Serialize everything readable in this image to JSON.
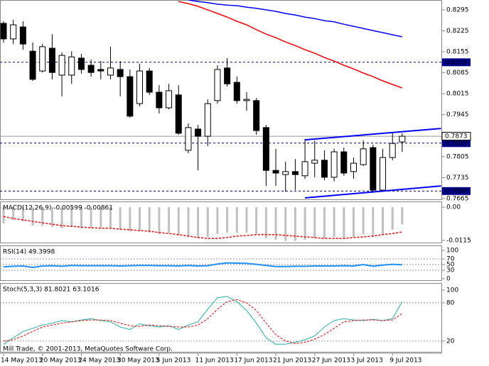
{
  "footer": "Mill Trade, © 2001-2013, MetaQuotes Software Corp.",
  "chart_data": [
    {
      "type": "candlestick",
      "categories": [
        "14 May 2013",
        null,
        null,
        null,
        "20 May 2013",
        null,
        null,
        null,
        "24 May 2013",
        null,
        null,
        null,
        "30 May 2013",
        null,
        null,
        null,
        "5 Jun 2013",
        null,
        null,
        null,
        "11 Jun 2013",
        null,
        null,
        null,
        "17 Jun 2013",
        null,
        null,
        null,
        "21 Jun 2013",
        null,
        null,
        null,
        "27 Jun 2013",
        null,
        null,
        null,
        "3 Jul 2013",
        null,
        null,
        null,
        "9 Jul 2013",
        null
      ],
      "open": [
        0.825,
        0.8198,
        0.8238,
        0.8157,
        0.8091,
        0.8167,
        0.8077,
        0.8077,
        0.8134,
        0.811,
        0.8096,
        0.8077,
        0.8096,
        0.8072,
        0.7982,
        0.8091,
        0.802,
        0.7968,
        0.8011,
        0.7826,
        0.7897,
        0.7873,
        0.7992,
        0.8101,
        0.8053,
        0.7992,
        0.7992,
        0.7902,
        0.7759,
        0.7745,
        0.7755,
        0.7741,
        0.7783,
        0.7793,
        0.7736,
        0.7821,
        0.7755,
        0.7778,
        0.7835,
        0.7693,
        0.7802,
        0.7854
      ],
      "high": [
        0.8257,
        0.8262,
        0.8257,
        0.8186,
        0.8181,
        0.8214,
        0.8153,
        0.8157,
        0.8148,
        0.8129,
        0.8124,
        0.8172,
        0.8124,
        0.8096,
        0.8115,
        0.8101,
        0.8044,
        0.8048,
        0.8044,
        0.7916,
        0.7911,
        0.7996,
        0.811,
        0.8134,
        0.8072,
        0.802,
        0.8001,
        0.7911,
        0.7831,
        0.7788,
        0.7797,
        0.7864,
        0.7859,
        0.7826,
        0.7831,
        0.7835,
        0.7802,
        0.7859,
        0.7845,
        0.7831,
        0.7887,
        0.7883
      ],
      "low": [
        0.8186,
        0.8181,
        0.8162,
        0.8058,
        0.8086,
        0.8063,
        0.8006,
        0.8048,
        0.8082,
        0.8072,
        0.8063,
        0.8063,
        0.8006,
        0.7935,
        0.7973,
        0.8011,
        0.7949,
        0.7963,
        0.7878,
        0.7816,
        0.7759,
        0.784,
        0.7982,
        0.8039,
        0.7982,
        0.7958,
        0.7878,
        0.7707,
        0.7707,
        0.7688,
        0.7693,
        0.7731,
        0.7736,
        0.7726,
        0.7722,
        0.7741,
        0.7731,
        0.7774,
        0.7684,
        0.7688,
        0.7793,
        0.7821
      ],
      "close": [
        0.8198,
        0.8245,
        0.8181,
        0.8063,
        0.8172,
        0.8086,
        0.8143,
        0.8138,
        0.8096,
        0.8086,
        0.8091,
        0.8101,
        0.8072,
        0.794,
        0.8091,
        0.802,
        0.7968,
        0.8025,
        0.7883,
        0.7902,
        0.7873,
        0.7982,
        0.8096,
        0.8048,
        0.7992,
        0.7996,
        0.7892,
        0.7759,
        0.775,
        0.7755,
        0.7745,
        0.7788,
        0.7793,
        0.7736,
        0.7821,
        0.775,
        0.7783,
        0.7831,
        0.7693,
        0.7802,
        0.7849,
        0.7873
      ],
      "up_color": "#ffffff",
      "down_color": "#000000",
      "series": [
        {
          "color": "#ff0000",
          "values": [
            null,
            null,
            null,
            null,
            null,
            null,
            null,
            null,
            null,
            null,
            null,
            null,
            null,
            null,
            null,
            null,
            null,
            null,
            0.8323,
            0.8316,
            0.8307,
            0.8295,
            0.8283,
            0.8271,
            0.8257,
            0.8245,
            0.8229,
            0.8214,
            0.8202,
            0.8188,
            0.8176,
            0.8162,
            0.815,
            0.8136,
            0.8124,
            0.811,
            0.8098,
            0.8084,
            0.8072,
            0.8058,
            0.8046,
            0.8034
          ]
        },
        {
          "color": "#0000ff",
          "values": [
            null,
            null,
            null,
            null,
            null,
            null,
            null,
            null,
            null,
            null,
            null,
            null,
            null,
            null,
            null,
            null,
            null,
            null,
            null,
            0.8328,
            0.8323,
            0.8319,
            0.8314,
            0.8311,
            0.8309,
            0.8304,
            0.83,
            0.8295,
            0.829,
            0.8283,
            0.8278,
            0.8271,
            0.8266,
            0.8259,
            0.8255,
            0.8247,
            0.824,
            0.8233,
            0.8226,
            0.8219,
            0.8212,
            0.8205
          ]
        }
      ],
      "trendlines": [
        {
          "color": "#0000ff",
          "x": [
            31,
            45
          ],
          "values": [
            0.7861,
            0.7899
          ]
        },
        {
          "color": "#0000ff",
          "x": [
            31,
            45
          ],
          "values": [
            0.7667,
            0.7707
          ]
        }
      ],
      "levels": [
        {
          "value": 0.812,
          "label": "0.8120"
        },
        {
          "value": 0.785,
          "label": "0.7850"
        },
        {
          "value": 0.769,
          "label": "0.7690"
        }
      ],
      "level_color": "#00008b",
      "last_price": 0.7873,
      "ylim": [
        0.766,
        0.8328
      ],
      "yticks": [
        0.8295,
        0.8225,
        0.8155,
        0.8085,
        0.8015,
        0.7945,
        0.7805,
        0.7735,
        0.7665
      ]
    },
    {
      "type": "macd",
      "title": "MACD(12,26,9) -0.00599 -0.00861",
      "color": "#c0c0c0",
      "values": [
        -0.0056,
        -0.0044,
        -0.0049,
        -0.0064,
        -0.0064,
        -0.0069,
        -0.0073,
        -0.0069,
        -0.0073,
        -0.0073,
        -0.0073,
        -0.0073,
        -0.0078,
        -0.0083,
        -0.0083,
        -0.0088,
        -0.0093,
        -0.0088,
        -0.0098,
        -0.0103,
        -0.0108,
        -0.0103,
        -0.0093,
        -0.0088,
        -0.0088,
        -0.0088,
        -0.0093,
        -0.0108,
        -0.0113,
        -0.0117,
        -0.0117,
        -0.0113,
        -0.0108,
        -0.0108,
        -0.0103,
        -0.0108,
        -0.0103,
        -0.0093,
        -0.0103,
        -0.0093,
        -0.0078,
        -0.006
      ],
      "series": [
        {
          "color": "#ff0000",
          "dashed": true,
          "values": [
            -0.0032,
            -0.0039,
            -0.0044,
            -0.0049,
            -0.0054,
            -0.0059,
            -0.0064,
            -0.0066,
            -0.0069,
            -0.0071,
            -0.0073,
            -0.0073,
            -0.0076,
            -0.0078,
            -0.0081,
            -0.0083,
            -0.0088,
            -0.0091,
            -0.0095,
            -0.01,
            -0.0105,
            -0.0108,
            -0.0108,
            -0.0105,
            -0.01,
            -0.0098,
            -0.0095,
            -0.0095,
            -0.0095,
            -0.0098,
            -0.01,
            -0.0103,
            -0.0105,
            -0.0108,
            -0.0108,
            -0.0108,
            -0.0105,
            -0.0103,
            -0.01,
            -0.0095,
            -0.0091,
            -0.0086
          ]
        }
      ],
      "ylim": [
        -0.0125,
        0.002
      ],
      "yticks": [
        {
          "value": 0,
          "label": "0.00"
        },
        -0.0115
      ]
    },
    {
      "type": "line",
      "title": "RSI(14) 49.3998",
      "series": [
        {
          "color": "#1e90ff",
          "width": 2,
          "values": [
            42,
            44,
            45,
            40,
            45,
            46,
            44,
            47,
            46,
            46,
            46,
            46,
            45,
            46,
            47,
            47,
            46,
            46,
            45,
            47,
            45,
            46,
            52,
            56,
            55,
            54,
            51,
            47,
            43,
            43,
            44,
            44,
            45,
            45,
            45,
            46,
            45,
            50,
            44,
            48,
            51,
            49.3998
          ]
        }
      ],
      "levels": [
        70,
        50,
        30
      ],
      "ylim": [
        -7.5,
        117.5
      ],
      "yticks": [
        100,
        70,
        50,
        30,
        0
      ]
    },
    {
      "type": "line",
      "title": "Stoch(5,3,3) 81.8021 63.1016",
      "series": [
        {
          "color": "#20b2aa",
          "width": 1,
          "values": [
            15,
            25,
            35,
            40,
            45,
            48,
            52,
            50,
            53,
            55,
            52,
            50,
            42,
            38,
            47,
            44,
            42,
            44,
            38,
            45,
            50,
            70,
            88,
            90,
            82,
            68,
            48,
            25,
            15,
            15,
            18,
            22,
            28,
            42,
            52,
            55,
            53,
            52,
            54,
            52,
            55,
            81.8021
          ]
        },
        {
          "color": "#ff0000",
          "width": 1,
          "dashed": true,
          "values": [
            20,
            22,
            28,
            35,
            42,
            45,
            48,
            50,
            52,
            53,
            53,
            52,
            48,
            44,
            43,
            45,
            44,
            43,
            42,
            42,
            45,
            55,
            70,
            82,
            85,
            80,
            68,
            48,
            30,
            20,
            16,
            18,
            23,
            30,
            40,
            50,
            52,
            53,
            53,
            52,
            53,
            63.1016
          ]
        }
      ],
      "levels": [
        80,
        20
      ],
      "ylim": [
        2,
        111
      ],
      "yticks": [
        100,
        80,
        20
      ]
    }
  ]
}
